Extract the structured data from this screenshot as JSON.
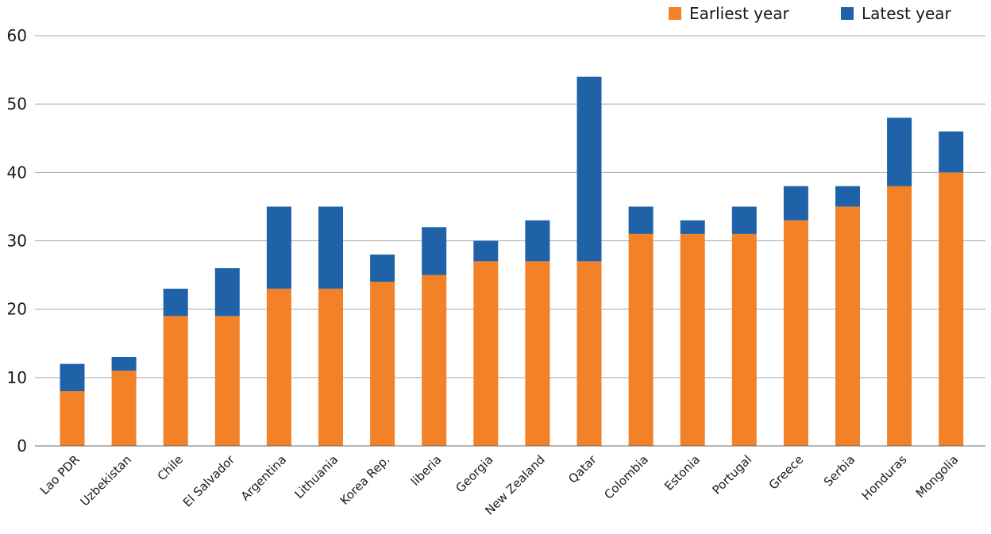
{
  "chart_data": {
    "type": "bar",
    "stacked": true,
    "categories": [
      "Lao PDR",
      "Uzbekistan",
      "Chile",
      "El Salvador",
      "Argentina",
      "Lithuania",
      "Korea Rep.",
      "liberia",
      "Georgia",
      "New Zealand",
      "Qatar",
      "Colombia",
      "Estonia",
      "Portugal",
      "Greece",
      "Serbia",
      "Honduras",
      "Mongolia"
    ],
    "series": [
      {
        "name": "Earliest year",
        "color": "#f28128",
        "values": [
          8,
          11,
          19,
          19,
          23,
          23,
          24,
          25,
          27,
          27,
          27,
          31,
          31,
          31,
          33,
          35,
          38,
          40
        ]
      },
      {
        "name": "Latest year",
        "color": "#1f62a8",
        "values": [
          4,
          2,
          4,
          7,
          12,
          12,
          4,
          7,
          3,
          6,
          27,
          4,
          2,
          4,
          5,
          3,
          10,
          6
        ]
      }
    ],
    "ylim": [
      0,
      60
    ],
    "yticks": [
      "0",
      "10",
      "20",
      "30",
      "40",
      "50",
      "60"
    ],
    "grid": true,
    "legend_position": "top-right"
  }
}
